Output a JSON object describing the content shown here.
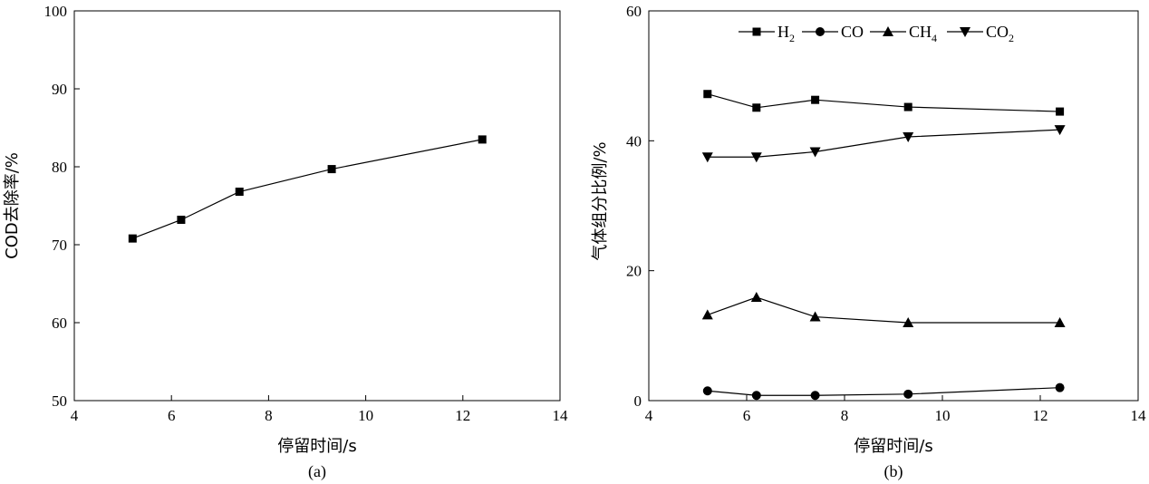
{
  "chart_data": [
    {
      "type": "line",
      "caption": "(a)",
      "xlabel": "停留时间/s",
      "ylabel": "COD去除率/%",
      "xlim": [
        4,
        14
      ],
      "ylim": [
        50,
        100
      ],
      "xticks": [
        "4",
        "6",
        "8",
        "10",
        "12",
        "14"
      ],
      "yticks": [
        "50",
        "60",
        "70",
        "80",
        "90",
        "100"
      ],
      "grid": false,
      "series": [
        {
          "marker": "square",
          "x": [
            5.2,
            6.2,
            7.4,
            9.3,
            12.4
          ],
          "y": [
            70.8,
            73.2,
            76.8,
            79.7,
            83.5
          ]
        }
      ]
    },
    {
      "type": "line",
      "caption": "(b)",
      "xlabel": "停留时间/s",
      "ylabel": "气体组分比例/%",
      "xlim": [
        4,
        14
      ],
      "ylim": [
        0,
        60
      ],
      "xticks": [
        "4",
        "6",
        "8",
        "10",
        "12",
        "14"
      ],
      "yticks": [
        "0",
        "20",
        "40",
        "60"
      ],
      "grid": false,
      "legend_position": "top",
      "series": [
        {
          "name": "H2",
          "label_main": "H",
          "label_sub": "2",
          "marker": "square",
          "x": [
            5.2,
            6.2,
            7.4,
            9.3,
            12.4
          ],
          "y": [
            47.2,
            45.1,
            46.3,
            45.2,
            44.5
          ]
        },
        {
          "name": "CO",
          "label_main": "CO",
          "label_sub": "",
          "marker": "circle",
          "x": [
            5.2,
            6.2,
            7.4,
            9.3,
            12.4
          ],
          "y": [
            1.5,
            0.8,
            0.8,
            1.0,
            2.0
          ]
        },
        {
          "name": "CH4",
          "label_main": "CH",
          "label_sub": "4",
          "marker": "triangle-up",
          "x": [
            5.2,
            6.2,
            7.4,
            9.3,
            12.4
          ],
          "y": [
            13.2,
            15.9,
            12.9,
            12.0,
            12.0
          ]
        },
        {
          "name": "CO2",
          "label_main": "CO",
          "label_sub": "2",
          "marker": "triangle-down",
          "x": [
            5.2,
            6.2,
            7.4,
            9.3,
            12.4
          ],
          "y": [
            37.5,
            37.5,
            38.3,
            40.6,
            41.7
          ]
        }
      ]
    }
  ]
}
